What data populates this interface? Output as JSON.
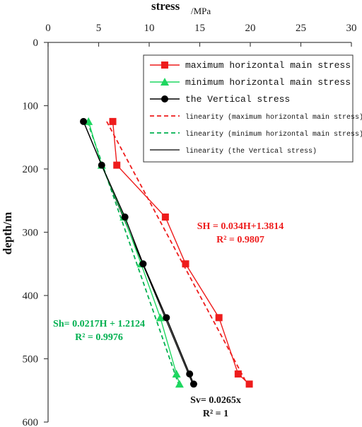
{
  "chart_data": {
    "type": "line",
    "x_axis": {
      "label": "stress",
      "unit": "/MPa",
      "ticks": [
        0,
        5,
        10,
        15,
        20,
        25,
        30
      ],
      "range": [
        0,
        30
      ],
      "position": "top"
    },
    "y_axis": {
      "label": "depth/m",
      "ticks": [
        0,
        100,
        200,
        300,
        400,
        500,
        600
      ],
      "range": [
        0,
        600
      ],
      "inverted": true
    },
    "grid": false,
    "legend_position": "top-right",
    "series": [
      {
        "name": "maximum horizontal main stress",
        "color": "#ee1c1c",
        "marker": "square",
        "points": [
          [
            6.4,
            125
          ],
          [
            6.8,
            194
          ],
          [
            11.6,
            276
          ],
          [
            13.6,
            350
          ],
          [
            16.9,
            435
          ],
          [
            18.8,
            524
          ],
          [
            19.9,
            540
          ]
        ]
      },
      {
        "name": "minimum horizontal main stress",
        "color": "#1ed760",
        "marker": "triangle",
        "points": [
          [
            4.0,
            125
          ],
          [
            5.3,
            194
          ],
          [
            7.5,
            276
          ],
          [
            9.2,
            350
          ],
          [
            11.1,
            435
          ],
          [
            12.7,
            524
          ],
          [
            13.0,
            540
          ]
        ]
      },
      {
        "name": "the Vertical stress",
        "color": "#000000",
        "marker": "circle",
        "points": [
          [
            3.5,
            125
          ],
          [
            5.3,
            194
          ],
          [
            7.6,
            276
          ],
          [
            9.4,
            350
          ],
          [
            11.7,
            435
          ],
          [
            14.0,
            524
          ],
          [
            14.4,
            540
          ]
        ]
      }
    ],
    "fits": [
      {
        "name": "linearity (maximum horizontal main stress)",
        "color": "#ee1c1c",
        "style": "dashed",
        "points": [
          [
            5.8,
            125
          ],
          [
            19.7,
            540
          ]
        ]
      },
      {
        "name": "linearity (minimum horizontal main stress)",
        "color": "#00b050",
        "style": "dashed",
        "points": [
          [
            3.9,
            125
          ],
          [
            12.9,
            540
          ]
        ]
      },
      {
        "name": "linearity (the Vertical stress)",
        "color": "#000000",
        "style": "solid",
        "points": [
          [
            3.5,
            125
          ],
          [
            14.3,
            540
          ]
        ]
      }
    ],
    "annotations": [
      {
        "id": "sh_max",
        "lines": [
          "SH = 0.034H+1.3814",
          "R² = 0.9807"
        ],
        "color": "#ee1c1c"
      },
      {
        "id": "sh_min",
        "lines": [
          "Sh= 0.0217H + 1.2124",
          "R² = 0.9976"
        ],
        "color": "#00b050"
      },
      {
        "id": "sv",
        "lines": [
          "Sv= 0.0265x",
          "R² = 1"
        ],
        "color": "#111111"
      }
    ]
  }
}
